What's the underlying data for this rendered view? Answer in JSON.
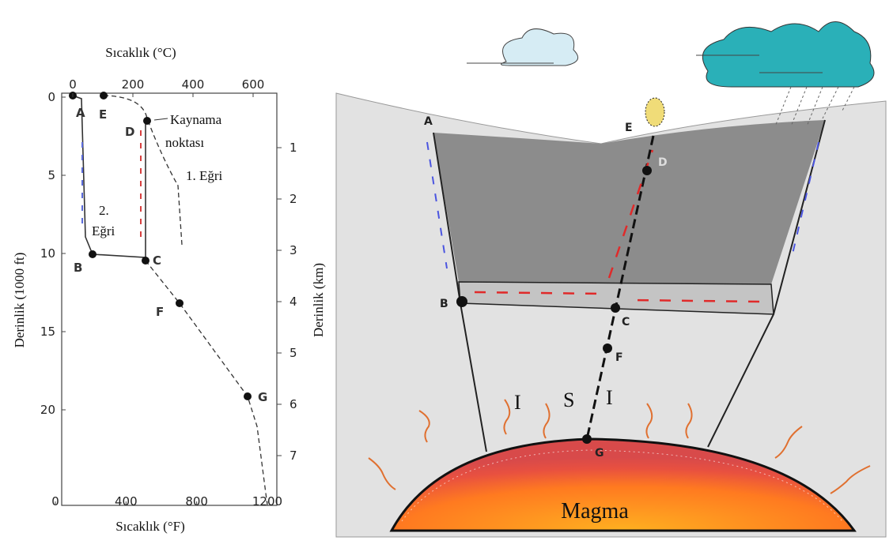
{
  "graph": {
    "top_axis_title": "Sıcaklık (°C)",
    "top_ticks": [
      0,
      200,
      400,
      600
    ],
    "bottom_axis_title": "Sıcaklık (°F)",
    "bottom_ticks": [
      0,
      400,
      800,
      1200
    ],
    "left_axis_title": "Derinlik (1000 ft)",
    "left_ticks": [
      0,
      5,
      10,
      15,
      20
    ],
    "right_axis_title": "Derinlik (km)",
    "right_ticks": [
      1,
      2,
      3,
      4,
      5,
      6,
      7
    ],
    "point_labels": [
      "A",
      "B",
      "C",
      "D",
      "E",
      "F",
      "G"
    ],
    "boiling_point": [
      "Kaynama",
      "noktası"
    ],
    "curve_1": "1. Eğri",
    "curve_2": [
      "2.",
      "Eğri"
    ]
  },
  "section": {
    "point_labels": [
      "A",
      "B",
      "C",
      "D",
      "E",
      "F",
      "G"
    ],
    "zone_letters": [
      "I",
      "S",
      "I"
    ],
    "magma": "Magma"
  }
}
